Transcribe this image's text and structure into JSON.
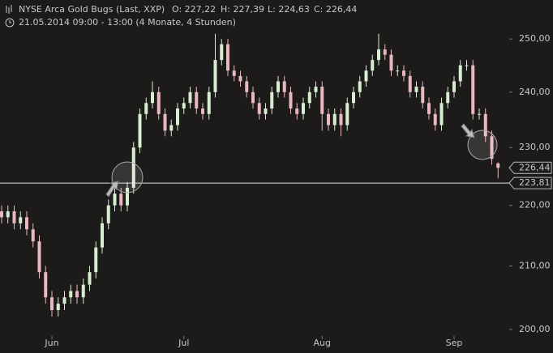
{
  "chart_data": {
    "type": "candlestick",
    "title": "NYSE Arca Gold Bugs (Last, XXP)",
    "header_values": [
      "O: 227,22",
      "H: 227,39",
      "L: 224,63",
      "C: 226,44"
    ],
    "subtitle": "21.05.2014 09:00 - 13:00 (4 Monate, 4 Stunden)",
    "log_scale": true,
    "grid": false,
    "up_color": "#d8ecd0",
    "down_color": "#e8b8c0",
    "ylim": [
      199,
      257.6
    ],
    "yticks": [
      {
        "value": 200,
        "label": "200,00"
      },
      {
        "value": 210,
        "label": "210,00"
      },
      {
        "value": 220,
        "label": "220,00"
      },
      {
        "value": 230,
        "label": "230,00"
      },
      {
        "value": 240,
        "label": "240,00"
      },
      {
        "value": 250,
        "label": "250,00"
      }
    ],
    "categories": [
      null,
      null,
      null,
      null,
      null,
      null,
      null,
      null,
      "Jun",
      null,
      null,
      null,
      null,
      null,
      null,
      null,
      null,
      null,
      null,
      null,
      null,
      null,
      null,
      null,
      null,
      null,
      null,
      null,
      null,
      "Jul",
      null,
      null,
      null,
      null,
      null,
      null,
      null,
      null,
      null,
      null,
      null,
      null,
      null,
      null,
      null,
      null,
      null,
      null,
      null,
      null,
      null,
      "Aug",
      null,
      null,
      null,
      null,
      null,
      null,
      null,
      null,
      null,
      null,
      null,
      null,
      null,
      null,
      null,
      null,
      null,
      null,
      null,
      null,
      "Sep",
      null,
      null,
      null,
      null,
      null,
      null,
      null
    ],
    "open": [
      219,
      218,
      219,
      217,
      218,
      216,
      214,
      209,
      205,
      203,
      204,
      205,
      206,
      205,
      207,
      209,
      213,
      217,
      220,
      222,
      220,
      223,
      230,
      236,
      238,
      240,
      236,
      233,
      234,
      237,
      238,
      240,
      237,
      236,
      240,
      246,
      249,
      244,
      243,
      242,
      240,
      238,
      236,
      237,
      240,
      242,
      240,
      237,
      236,
      238,
      240,
      241,
      236,
      234,
      236,
      234,
      238,
      240,
      242,
      244,
      246,
      248,
      247,
      244,
      244,
      243,
      240,
      241,
      238,
      236,
      234,
      238,
      240,
      242,
      245,
      245,
      236,
      236,
      232,
      227.22
    ],
    "high": [
      220,
      220,
      220,
      219,
      219,
      217,
      215,
      210,
      206,
      205,
      206,
      207,
      207,
      208,
      210,
      214,
      218,
      221,
      223,
      223,
      224,
      231,
      237,
      239,
      242,
      241,
      237,
      235,
      238,
      239,
      241,
      241,
      238,
      241,
      251,
      250,
      250,
      245,
      244,
      243,
      241,
      239,
      238,
      241,
      243,
      243,
      241,
      238,
      239,
      241,
      242,
      242,
      237,
      237,
      237,
      239,
      241,
      243,
      245,
      247,
      251,
      249,
      248,
      245,
      245,
      244,
      242,
      242,
      239,
      237,
      239,
      241,
      243,
      246,
      246,
      246,
      237,
      237,
      233,
      227.39
    ],
    "low": [
      217,
      217,
      216,
      216,
      215,
      213,
      208,
      204,
      202,
      202,
      203,
      204,
      204,
      204,
      206,
      208,
      212,
      216,
      219,
      219,
      219,
      222,
      229,
      235,
      237,
      235,
      232,
      232,
      233,
      236,
      237,
      236,
      235,
      235,
      239,
      245,
      243,
      242,
      241,
      239,
      237,
      235,
      235,
      236,
      239,
      239,
      236,
      235,
      235,
      237,
      239,
      233,
      233,
      233,
      232,
      233,
      237,
      239,
      241,
      243,
      245,
      246,
      243,
      243,
      242,
      239,
      239,
      237,
      235,
      233,
      233,
      237,
      239,
      241,
      244,
      235,
      235,
      231,
      227,
      224.63
    ],
    "close": [
      218,
      219,
      217,
      218,
      216,
      214,
      209,
      205,
      203,
      204,
      205,
      206,
      205,
      207,
      209,
      213,
      217,
      220,
      222,
      220,
      223,
      230,
      236,
      238,
      240,
      236,
      233,
      234,
      237,
      238,
      240,
      237,
      236,
      240,
      246,
      249,
      244,
      243,
      242,
      240,
      238,
      236,
      237,
      240,
      242,
      240,
      237,
      236,
      238,
      240,
      241,
      236,
      234,
      236,
      234,
      238,
      240,
      242,
      244,
      246,
      248,
      247,
      244,
      244,
      243,
      240,
      241,
      238,
      236,
      234,
      238,
      240,
      242,
      245,
      245,
      236,
      236,
      232,
      228,
      226.44
    ],
    "last_price": {
      "value": 226.44,
      "label": "226,44"
    },
    "hline": {
      "value": 223.81,
      "label": "223,81"
    }
  }
}
